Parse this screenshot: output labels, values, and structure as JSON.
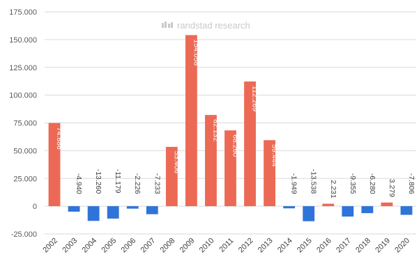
{
  "watermark": "randstad research",
  "colors": {
    "positive": "#ec6a55",
    "negative": "#2f74d8",
    "gridline": "#d9d9d9",
    "inside_label": "#ffffff",
    "outside_label": "#404040"
  },
  "chart_data": {
    "type": "bar",
    "categories": [
      "2002",
      "2003",
      "2004",
      "2005",
      "2006",
      "2007",
      "2008",
      "2009",
      "2010",
      "2011",
      "2012",
      "2013",
      "2014",
      "2015",
      "2016",
      "2017",
      "2018",
      "2019",
      "2020"
    ],
    "values": [
      74886,
      -4940,
      -13260,
      -11179,
      -2226,
      -7233,
      53406,
      154058,
      82132,
      68260,
      112269,
      59444,
      -1949,
      -13538,
      2231,
      -9355,
      -6280,
      3279,
      -7806
    ],
    "value_labels": [
      "74.886",
      "-4.940",
      "-13.260",
      "-11.179",
      "-2.226",
      "-7.233",
      "53.406",
      "154.058",
      "82.132",
      "68.260",
      "112.269",
      "59.444",
      "-1.949",
      "-13.538",
      "2.231",
      "-9.355",
      "-6.280",
      "3.279",
      "-7.806"
    ],
    "yticks": [
      -25000,
      0,
      25000,
      50000,
      75000,
      100000,
      125000,
      150000,
      175000
    ],
    "ytick_labels": [
      "-25.000",
      "0",
      "25.000",
      "50.000",
      "75.000",
      "100.000",
      "125.000",
      "150.000",
      "175.000"
    ],
    "ylim": [
      -25000,
      175000
    ],
    "title": "",
    "xlabel": "",
    "ylabel": "",
    "grid": true,
    "legend": "none"
  }
}
